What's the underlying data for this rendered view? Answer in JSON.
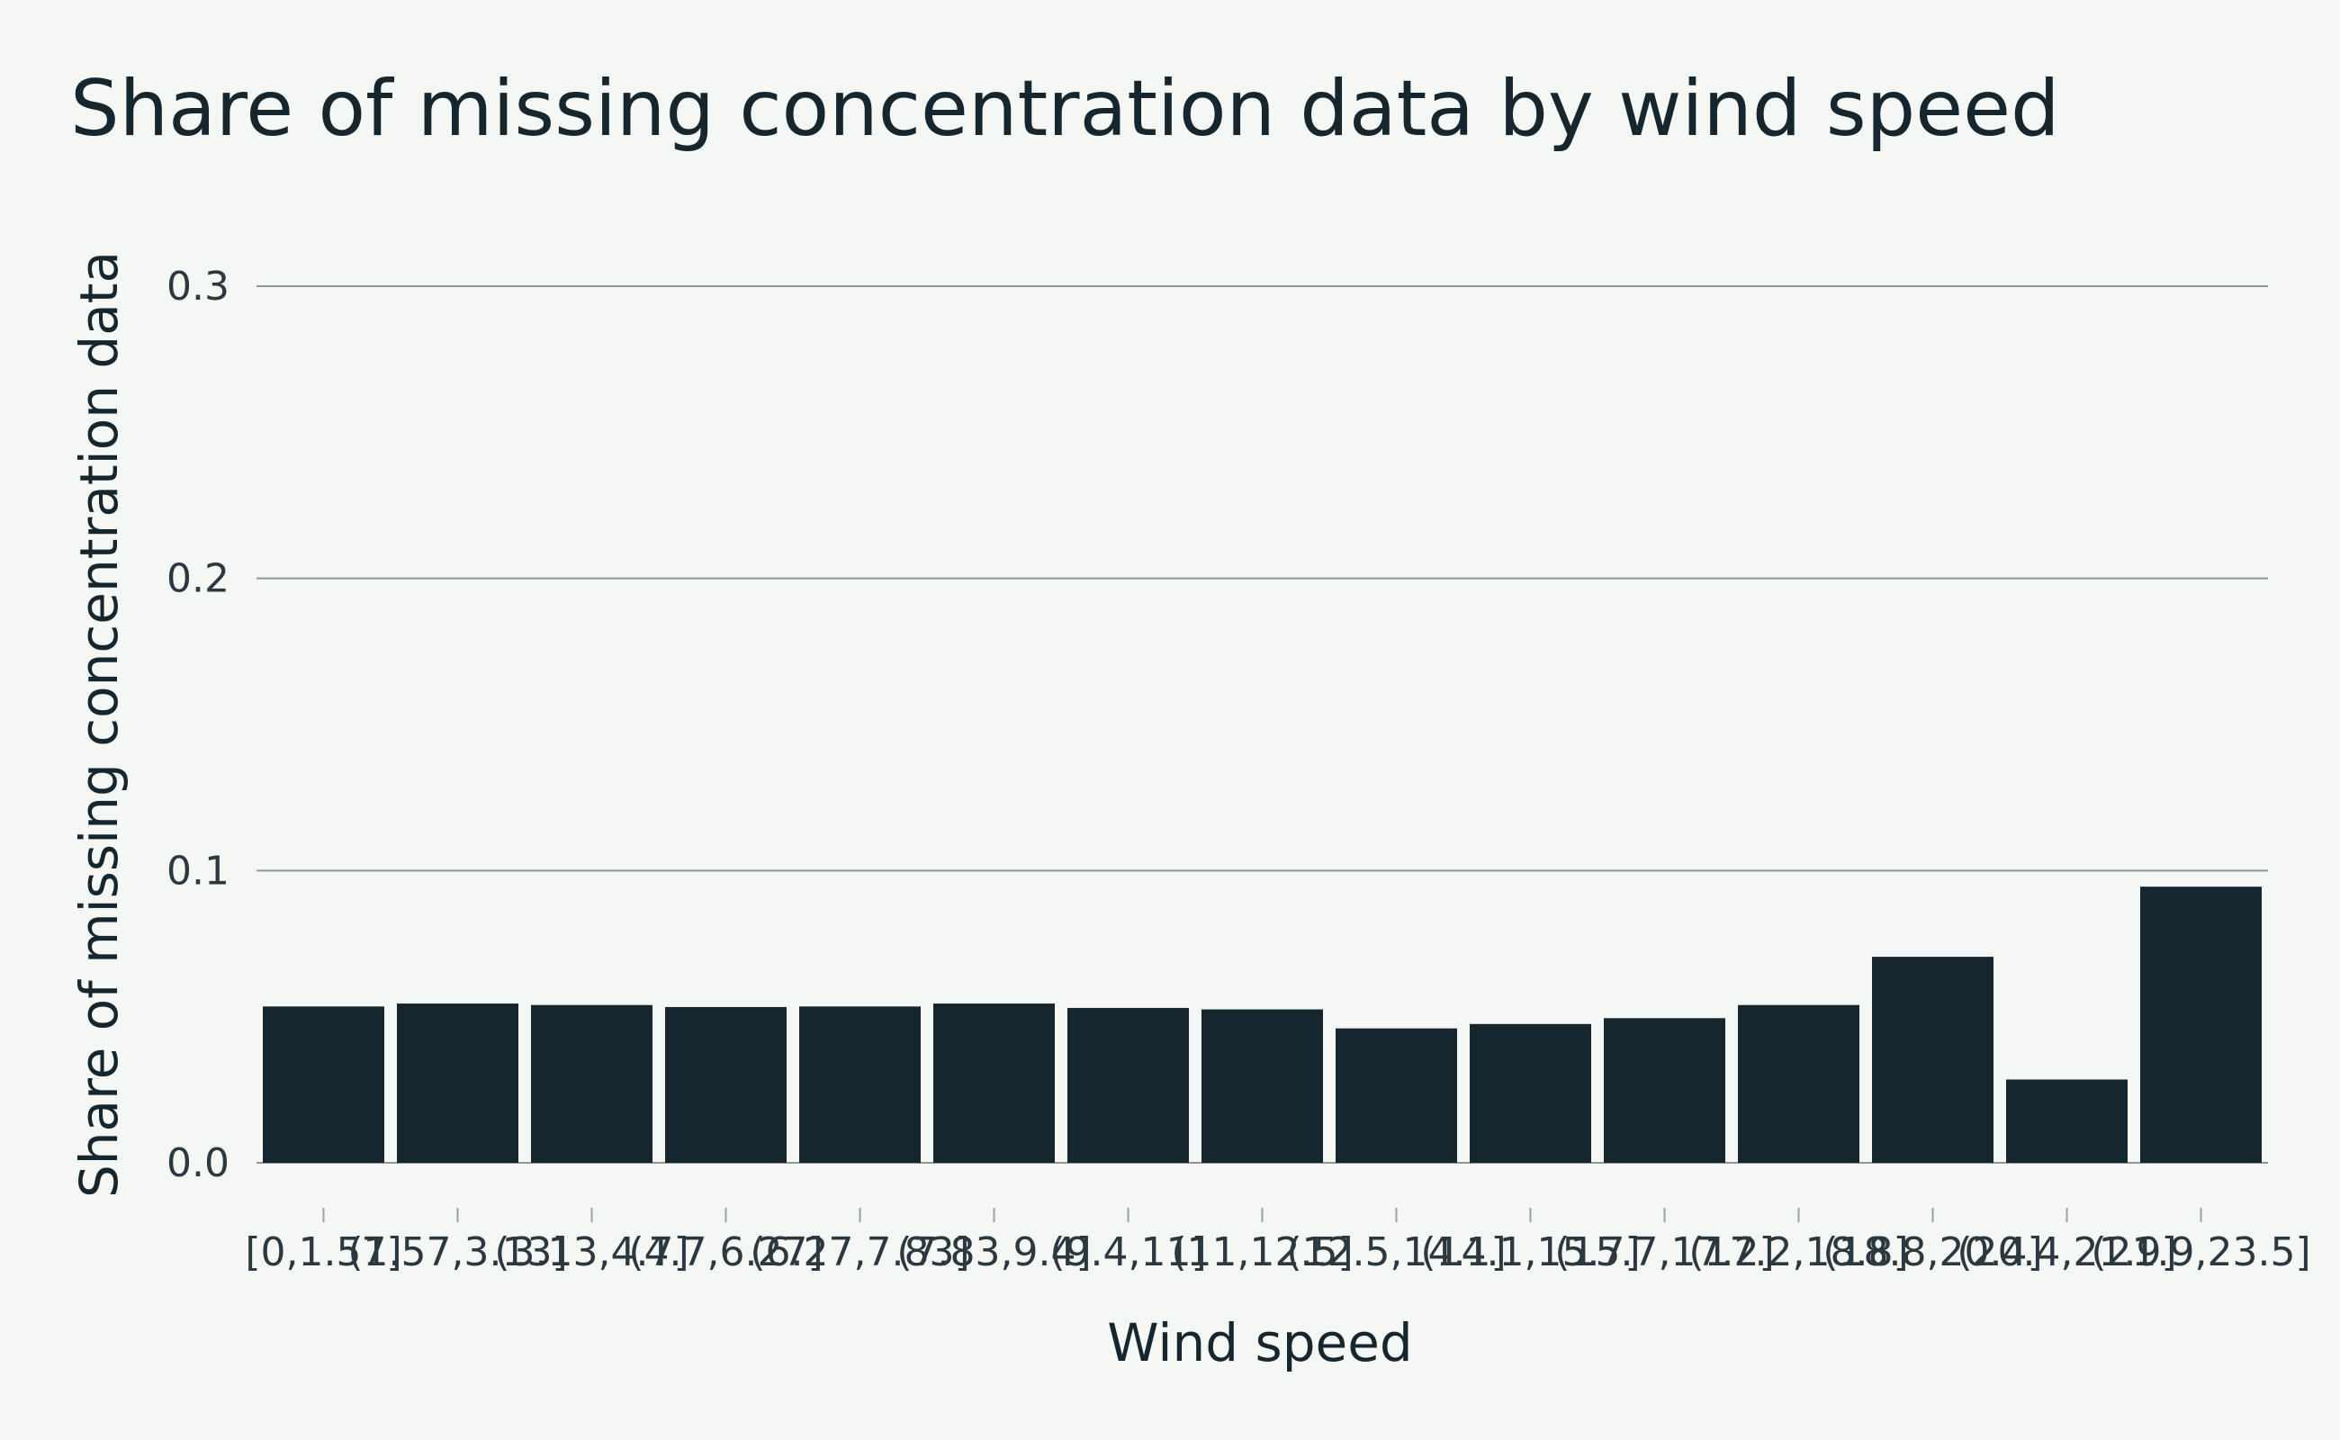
{
  "chart_data": {
    "type": "bar",
    "title": "Share of missing concentration data by wind speed",
    "xlabel": "Wind speed",
    "ylabel": "Share of missing concentration data",
    "categories": [
      "[0,1.57]",
      "(1.57,3.13]",
      "(3.13,4.7]",
      "(4.7,6.27]",
      "(6.27,7.83]",
      "(7.83,9.4]",
      "(9.4,11]",
      "(11,12.5]",
      "(12.5,14.1]",
      "(14.1,15.7]",
      "(15.7,17.2]",
      "(17.2,18.8]",
      "(18.8,20.4]",
      "(20.4,21.9]",
      "(21.9,23.5]"
    ],
    "values": [
      0.0535,
      0.0545,
      0.054,
      0.0533,
      0.0535,
      0.0545,
      0.053,
      0.0525,
      0.046,
      0.0475,
      0.0495,
      0.054,
      0.0705,
      0.0285,
      0.0945
    ],
    "ylim": [
      0,
      0.3
    ],
    "yticks": [
      "0.0",
      "0.1",
      "0.2",
      "0.3"
    ],
    "grid": true,
    "legend": "none",
    "colors": {
      "bar": "#16262e",
      "background": "#f5f7f4",
      "grid": "#8f969a"
    }
  }
}
